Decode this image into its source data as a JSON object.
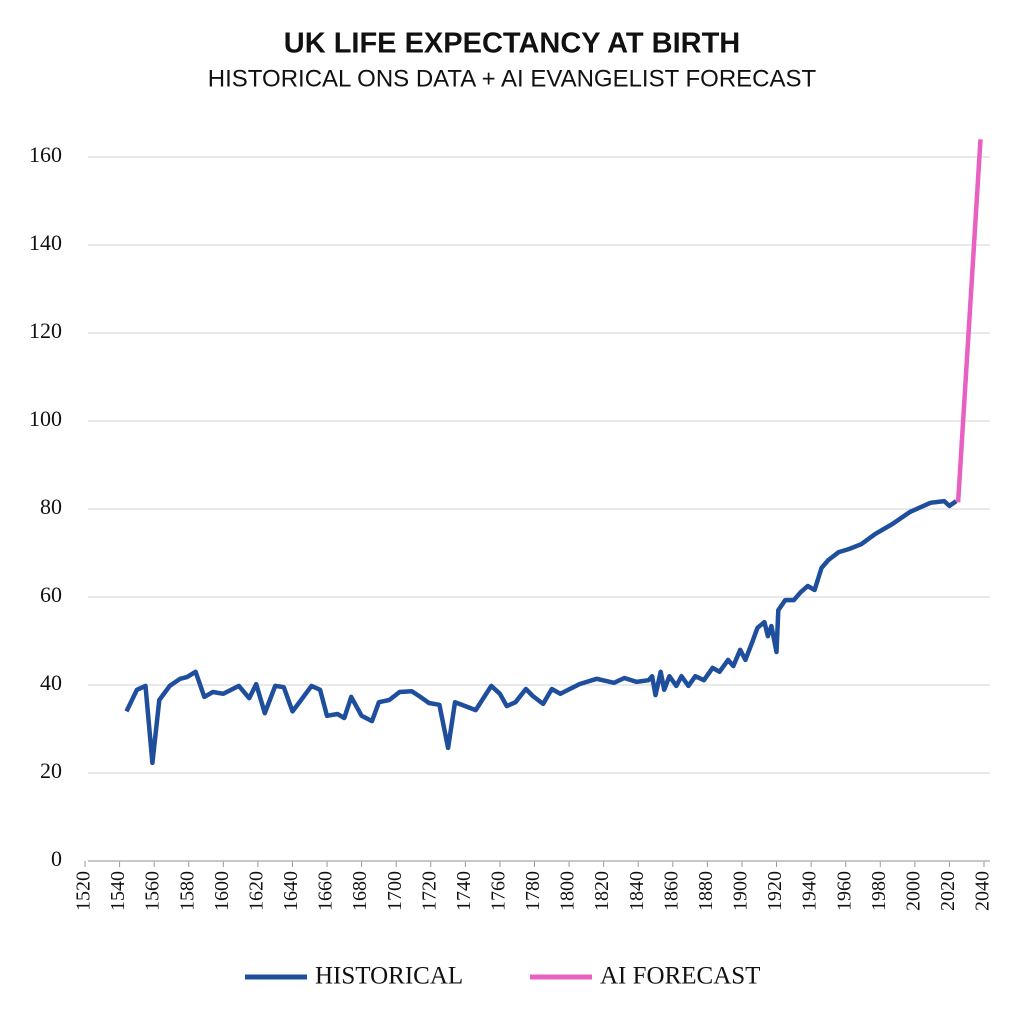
{
  "chart_data": {
    "type": "line",
    "title": "UK LIFE EXPECTANCY AT BIRTH",
    "subtitle": "HISTORICAL ONS DATA + AI EVANGELIST FORECAST",
    "xlim": [
      1520,
      2040
    ],
    "xticks": [
      1520,
      1540,
      1560,
      1580,
      1600,
      1620,
      1640,
      1660,
      1680,
      1700,
      1720,
      1740,
      1760,
      1780,
      1800,
      1820,
      1840,
      1860,
      1880,
      1900,
      1920,
      1940,
      1960,
      1980,
      2000,
      2020,
      2040
    ],
    "ylim": [
      0,
      165
    ],
    "yticks": [
      0,
      20,
      40,
      60,
      80,
      100,
      120,
      140,
      160
    ],
    "grid": true,
    "legend": "bottom",
    "series": [
      {
        "name": "HISTORICAL",
        "color": "#1f4e9c",
        "x": [
          1544,
          1550,
          1555,
          1559,
          1563,
          1569,
          1575,
          1579,
          1584,
          1589,
          1594,
          1600,
          1609,
          1615,
          1619,
          1624,
          1630,
          1635,
          1640,
          1645,
          1651,
          1656,
          1660,
          1666,
          1670,
          1674,
          1680,
          1686,
          1690,
          1696,
          1702,
          1709,
          1714,
          1719,
          1725,
          1730,
          1734,
          1740,
          1746,
          1755,
          1760,
          1764,
          1769,
          1775,
          1779,
          1785,
          1790,
          1795,
          1806,
          1816,
          1826,
          1832,
          1839,
          1846,
          1848,
          1850,
          1853,
          1855,
          1858,
          1862,
          1865,
          1869,
          1873,
          1878,
          1883,
          1887,
          1892,
          1895,
          1899,
          1902,
          1906,
          1909,
          1913,
          1915,
          1917,
          1920,
          1921,
          1925,
          1930,
          1934,
          1938,
          1942,
          1946,
          1950,
          1956,
          1962,
          1969,
          1977,
          1987,
          1997,
          2009,
          2017,
          2020,
          2024
        ],
        "values": [
          34,
          38.9,
          39.8,
          22.3,
          36.6,
          39.8,
          41.4,
          41.8,
          43,
          37.3,
          38.4,
          38,
          39.8,
          37,
          40.2,
          33.6,
          39.8,
          39.5,
          34,
          36.6,
          39.8,
          38.9,
          33,
          33.4,
          32.5,
          37.3,
          33,
          31.8,
          36.1,
          36.6,
          38.4,
          38.6,
          37.3,
          35.9,
          35.5,
          25.7,
          36.1,
          35.2,
          34.3,
          39.8,
          38,
          35.2,
          36.1,
          39.1,
          37.5,
          35.7,
          39.1,
          38,
          40.2,
          41.4,
          40.5,
          41.6,
          40.7,
          41.1,
          42,
          37.7,
          43,
          38.9,
          42,
          39.8,
          42,
          39.8,
          42,
          41.1,
          43.9,
          43,
          45.7,
          44.3,
          48,
          45.7,
          49.8,
          53,
          54.3,
          51.1,
          53.4,
          47.5,
          57,
          59.3,
          59.3,
          61.1,
          62.5,
          61.6,
          66.6,
          68.4,
          70.2,
          70.9,
          72,
          74.3,
          76.6,
          79.3,
          81.4,
          81.8,
          80.7,
          81.8
        ]
      },
      {
        "name": "AI FORECAST",
        "color": "#e860c2",
        "x": [
          2025,
          2038
        ],
        "values": [
          81.5,
          164
        ]
      }
    ]
  }
}
